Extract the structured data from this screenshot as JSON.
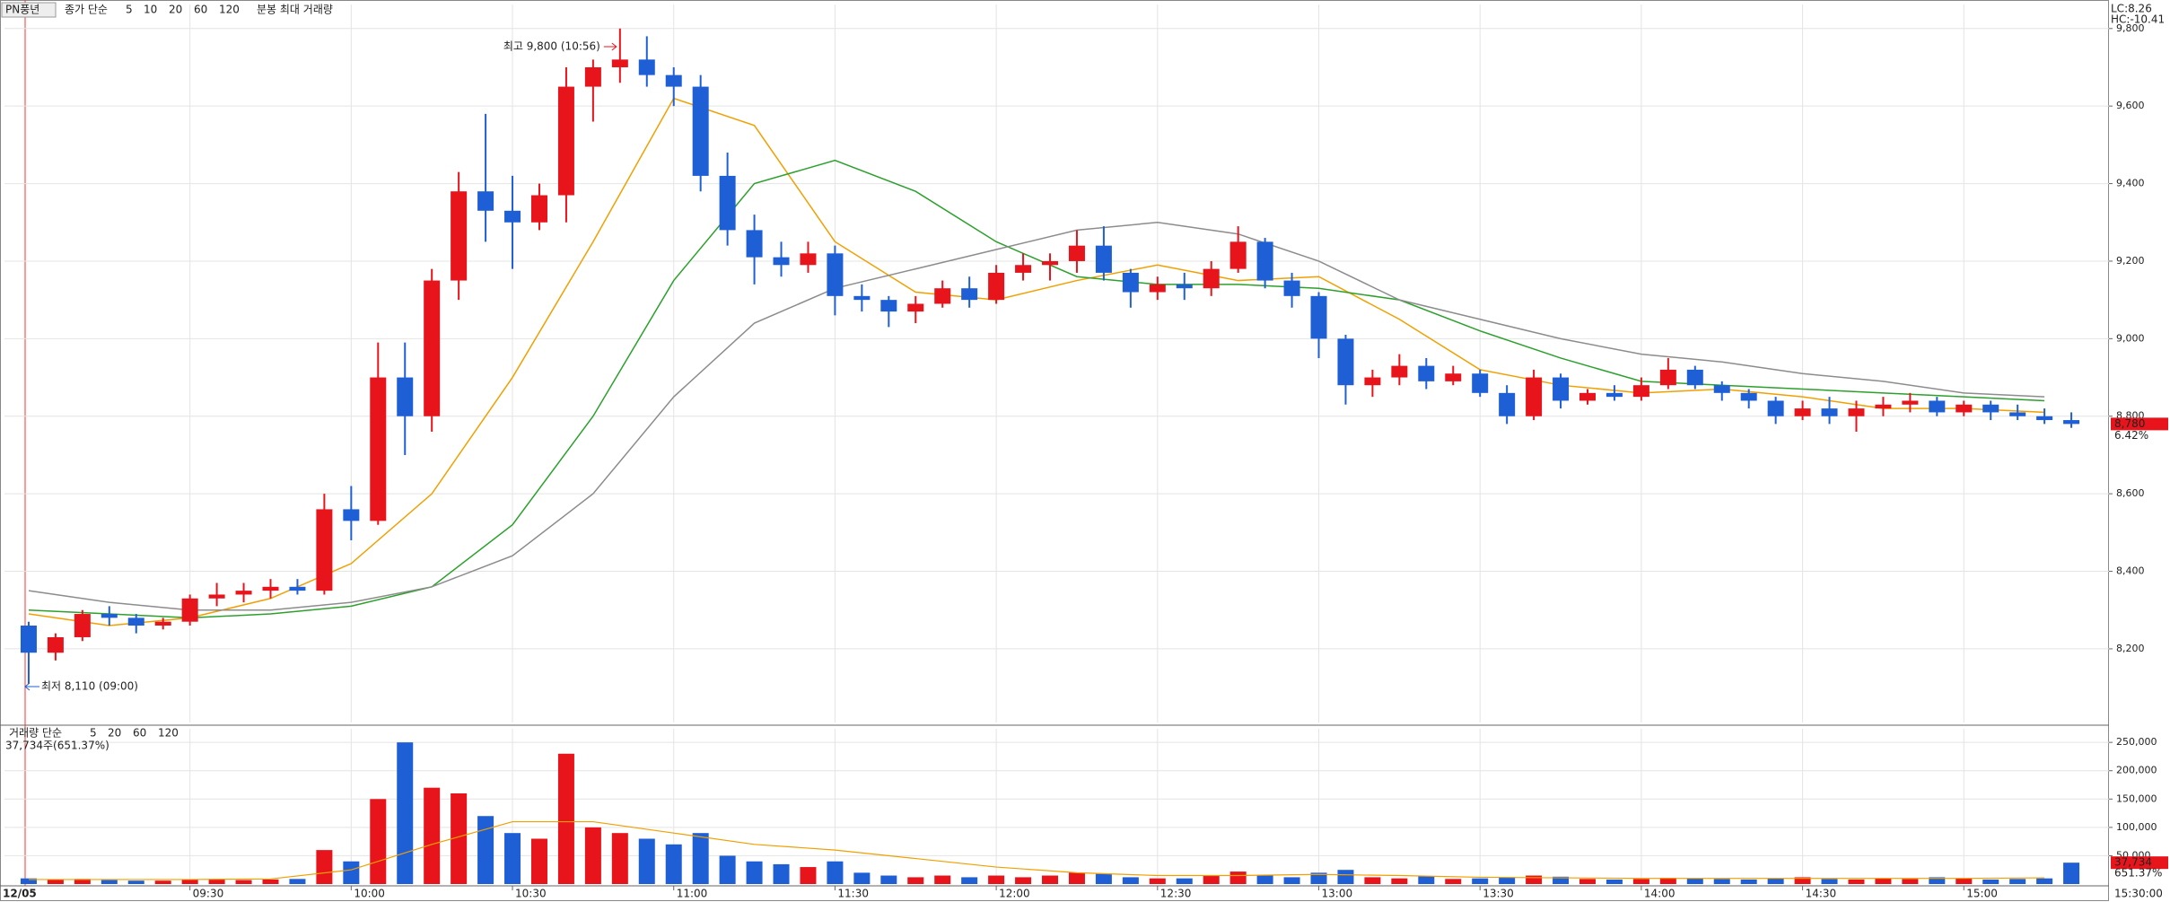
{
  "chart_data": [
    {
      "type": "candlestick",
      "title": "PN풍년",
      "legend_title": "종가 단순",
      "legend_extra": "분봉 최대 거래량",
      "corner_labels": [
        "LC:8.26",
        "HC:-10.41"
      ],
      "date_label": "12/05",
      "end_label": "15:30:00",
      "annotations": [
        {
          "text": "최고 9,800 (10:56)"
        },
        {
          "text": "최저 8,110 (09:00)"
        }
      ],
      "last_labels": [
        "8,780",
        "6.42%"
      ],
      "up_color": "#e8141c",
      "down_color": "#1f5fd6",
      "open": [
        8260,
        8190,
        8230,
        8290,
        8280,
        8260,
        8270,
        8330,
        8340,
        8350,
        8360,
        8350,
        8560,
        8530,
        8900,
        8800,
        9150,
        9380,
        9330,
        9300,
        9370,
        9650,
        9700,
        9720,
        9680,
        9650,
        9420,
        9280,
        9210,
        9190,
        9220,
        9110,
        9100,
        9070,
        9090,
        9130,
        9100,
        9170,
        9190,
        9200,
        9240,
        9170,
        9120,
        9140,
        9130,
        9180,
        9250,
        9150,
        9110,
        9000,
        8880,
        8900,
        8930,
        8890,
        8910,
        8860,
        8800,
        8900,
        8840,
        8860,
        8850,
        8880,
        8920,
        8880,
        8860,
        8840,
        8800,
        8820,
        8800,
        8820,
        8830,
        8840,
        8810,
        8830,
        8810,
        8800,
        8790
      ],
      "high": [
        8270,
        8240,
        8300,
        8310,
        8290,
        8280,
        8340,
        8370,
        8370,
        8380,
        8380,
        8600,
        8620,
        8990,
        8990,
        9180,
        9430,
        9580,
        9420,
        9400,
        9700,
        9720,
        9800,
        9780,
        9700,
        9680,
        9480,
        9320,
        9250,
        9250,
        9240,
        9140,
        9110,
        9110,
        9150,
        9160,
        9190,
        9220,
        9220,
        9280,
        9290,
        9180,
        9160,
        9170,
        9200,
        9290,
        9260,
        9170,
        9120,
        9010,
        8920,
        8960,
        8950,
        8930,
        8920,
        8880,
        8920,
        8910,
        8870,
        8880,
        8900,
        8950,
        8930,
        8890,
        8870,
        8850,
        8840,
        8850,
        8840,
        8850,
        8860,
        8850,
        8840,
        8840,
        8830,
        8820,
        8810
      ],
      "low": [
        8110,
        8170,
        8220,
        8260,
        8240,
        8250,
        8260,
        8310,
        8320,
        8330,
        8340,
        8340,
        8480,
        8520,
        8700,
        8760,
        9100,
        9250,
        9180,
        9280,
        9300,
        9560,
        9660,
        9650,
        9600,
        9380,
        9240,
        9140,
        9160,
        9170,
        9060,
        9070,
        9030,
        9040,
        9080,
        9080,
        9090,
        9150,
        9150,
        9170,
        9150,
        9080,
        9100,
        9100,
        9110,
        9170,
        9130,
        9080,
        8950,
        8830,
        8850,
        8880,
        8870,
        8880,
        8850,
        8780,
        8790,
        8820,
        8830,
        8840,
        8840,
        8870,
        8870,
        8840,
        8820,
        8780,
        8790,
        8780,
        8760,
        8800,
        8810,
        8800,
        8800,
        8790,
        8790,
        8780,
        8770
      ],
      "close": [
        8190,
        8230,
        8290,
        8280,
        8260,
        8270,
        8330,
        8340,
        8350,
        8360,
        8350,
        8560,
        8530,
        8900,
        8800,
        9150,
        9380,
        9330,
        9300,
        9370,
        9650,
        9700,
        9720,
        9680,
        9650,
        9420,
        9280,
        9210,
        9190,
        9220,
        9110,
        9100,
        9070,
        9090,
        9130,
        9100,
        9170,
        9190,
        9200,
        9240,
        9170,
        9120,
        9140,
        9130,
        9180,
        9250,
        9150,
        9110,
        9000,
        8880,
        8900,
        8930,
        8890,
        8910,
        8860,
        8800,
        8900,
        8840,
        8860,
        8850,
        8880,
        8920,
        8880,
        8860,
        8840,
        8800,
        8820,
        8800,
        8820,
        8830,
        8840,
        8810,
        8830,
        8810,
        8800,
        8790,
        8780
      ],
      "series": [
        {
          "name": "5",
          "color": "#e000e0"
        },
        {
          "name": "10",
          "color": "#0000ff"
        },
        {
          "name": "20",
          "color": "#f0a000",
          "x": [
            0,
            3,
            6,
            9,
            12,
            15,
            18,
            21,
            24,
            27,
            30,
            33,
            36,
            39,
            42,
            45,
            48,
            51,
            54,
            57,
            60,
            63,
            66,
            69,
            72,
            75
          ],
          "values": [
            8290,
            8260,
            8280,
            8330,
            8420,
            8600,
            8900,
            9250,
            9620,
            9550,
            9250,
            9120,
            9100,
            9150,
            9190,
            9150,
            9160,
            9050,
            8920,
            8880,
            8860,
            8870,
            8850,
            8820,
            8820,
            8810
          ]
        },
        {
          "name": "60",
          "color": "#2ca02c",
          "x": [
            0,
            3,
            6,
            9,
            12,
            15,
            18,
            21,
            24,
            27,
            30,
            33,
            36,
            39,
            42,
            45,
            48,
            51,
            54,
            57,
            60,
            63,
            66,
            69,
            72,
            75
          ],
          "values": [
            8300,
            8290,
            8280,
            8290,
            8310,
            8360,
            8520,
            8800,
            9150,
            9400,
            9460,
            9380,
            9250,
            9160,
            9140,
            9140,
            9130,
            9100,
            9020,
            8950,
            8890,
            8880,
            8870,
            8860,
            8850,
            8840
          ]
        },
        {
          "name": "120",
          "color": "#8c8c8c",
          "x": [
            0,
            3,
            6,
            9,
            12,
            15,
            18,
            21,
            24,
            27,
            30,
            33,
            36,
            39,
            42,
            45,
            48,
            51,
            54,
            57,
            60,
            63,
            66,
            69,
            72,
            75
          ],
          "values": [
            8350,
            8320,
            8300,
            8300,
            8320,
            8360,
            8440,
            8600,
            8850,
            9040,
            9130,
            9180,
            9230,
            9280,
            9300,
            9270,
            9200,
            9100,
            9050,
            9000,
            8960,
            8940,
            8910,
            8890,
            8860,
            8850
          ]
        }
      ],
      "xlim": [
        -0.9,
        77.4
      ],
      "xticks": [
        {
          "value": 6,
          "label": "09:30"
        },
        {
          "value": 12,
          "label": "10:00"
        },
        {
          "value": 18,
          "label": "10:30"
        },
        {
          "value": 24,
          "label": "11:00"
        },
        {
          "value": 30,
          "label": "11:30"
        },
        {
          "value": 36,
          "label": "12:00"
        },
        {
          "value": 42,
          "label": "12:30"
        },
        {
          "value": 48,
          "label": "13:00"
        },
        {
          "value": 54,
          "label": "13:30"
        },
        {
          "value": 60,
          "label": "14:00"
        },
        {
          "value": 66,
          "label": "14:30"
        },
        {
          "value": 72,
          "label": "15:00"
        }
      ],
      "ylim": [
        8010,
        9862
      ],
      "yticks": [
        {
          "value": 8200,
          "label": "8,200"
        },
        {
          "value": 8400,
          "label": "8,400"
        },
        {
          "value": 8600,
          "label": "8,600"
        },
        {
          "value": 8800,
          "label": "8,800"
        },
        {
          "value": 9000,
          "label": "9,000"
        },
        {
          "value": 9200,
          "label": "9,200"
        },
        {
          "value": 9400,
          "label": "9,400"
        },
        {
          "value": 9600,
          "label": "9,600"
        },
        {
          "value": 9800,
          "label": "9,800"
        }
      ],
      "grid": true
    },
    {
      "type": "volume",
      "legend_title": "거래량 단순",
      "status": "37,734주(651.37%)",
      "last_labels": [
        "37,734",
        "651.37%"
      ],
      "values": [
        10000,
        8000,
        9000,
        7000,
        6000,
        6000,
        8000,
        9000,
        7000,
        8000,
        9000,
        60000,
        40000,
        150000,
        250000,
        170000,
        160000,
        120000,
        90000,
        80000,
        230000,
        100000,
        90000,
        80000,
        70000,
        90000,
        50000,
        40000,
        35000,
        30000,
        40000,
        20000,
        15000,
        12000,
        15000,
        12000,
        15000,
        12000,
        15000,
        20000,
        18000,
        12000,
        10000,
        10000,
        15000,
        22000,
        15000,
        12000,
        20000,
        25000,
        12000,
        10000,
        14000,
        9000,
        10000,
        12000,
        15000,
        13000,
        9000,
        8000,
        9000,
        11000,
        10000,
        9000,
        8000,
        10000,
        12000,
        9000,
        8000,
        10000,
        9000,
        12000,
        10000,
        8000,
        9000,
        10000,
        37734
      ],
      "series": [
        {
          "name": "5",
          "color": "#e000e0"
        },
        {
          "name": "20",
          "color": "#f0a000",
          "x": [
            0,
            3,
            6,
            9,
            12,
            15,
            18,
            21,
            24,
            27,
            30,
            33,
            36,
            39,
            42,
            45,
            48,
            51,
            54,
            57,
            60,
            63,
            66,
            69,
            72,
            75
          ],
          "values": [
            8000,
            8000,
            8000,
            9000,
            25000,
            70000,
            110000,
            110000,
            90000,
            70000,
            60000,
            45000,
            30000,
            20000,
            15000,
            15000,
            17000,
            15000,
            12000,
            11000,
            10000,
            10000,
            10000,
            10000,
            10000,
            11000
          ]
        },
        {
          "name": "60",
          "color": "#2ca02c"
        },
        {
          "name": "120",
          "color": "#8c8c8c"
        }
      ],
      "ylim": [
        0,
        274000
      ],
      "yticks": [
        {
          "value": 50000,
          "label": "50,000"
        },
        {
          "value": 100000,
          "label": "100,000"
        },
        {
          "value": 150000,
          "label": "150,000"
        },
        {
          "value": 200000,
          "label": "200,000"
        },
        {
          "value": 250000,
          "label": "250,000"
        }
      ],
      "grid": true
    }
  ]
}
